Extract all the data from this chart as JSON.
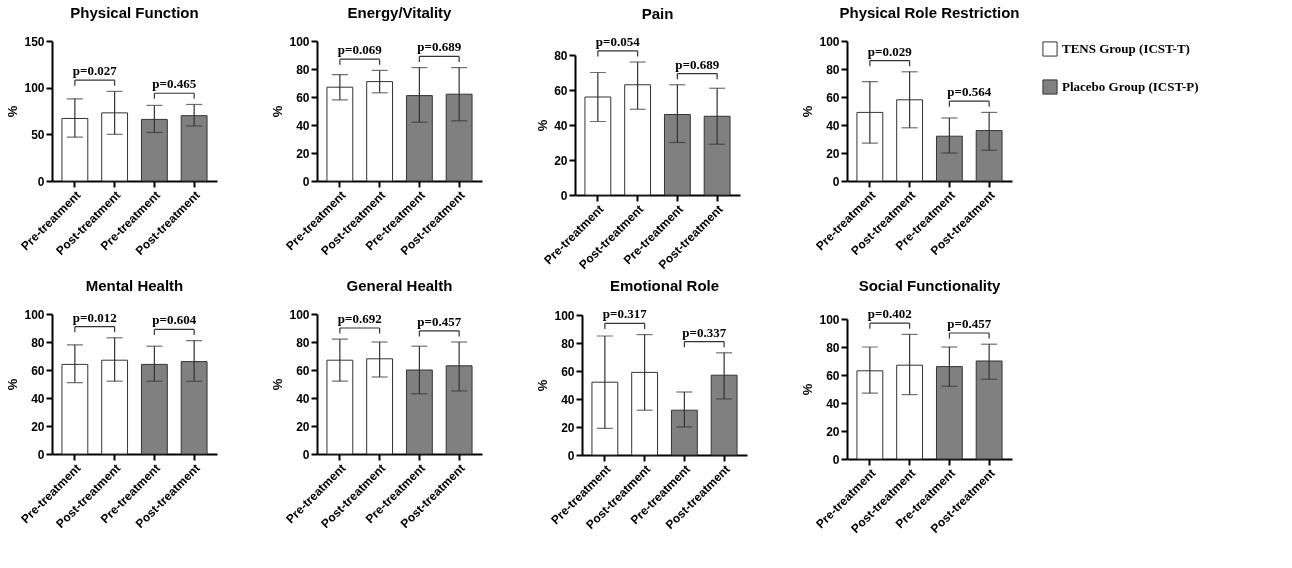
{
  "chart_data": [
    {
      "type": "bar",
      "title": "Physical Function",
      "ylabel": "%",
      "categories": [
        "Pre-treatment",
        "Post-treatment",
        "Pre-treatment",
        "Post-treatment"
      ],
      "ylim": [
        0,
        150
      ],
      "yticks": [
        0,
        50,
        100,
        150
      ],
      "grid": false,
      "annotations": [
        "p=0.027",
        "p=0.465"
      ],
      "series": [
        {
          "color": "#ffffff",
          "values": [
            67,
            73,
            null,
            null
          ],
          "errors": [
            [
              47,
              88
            ],
            [
              50,
              96
            ],
            null,
            null
          ]
        },
        {
          "color": "#808080",
          "values": [
            null,
            null,
            66,
            70
          ],
          "errors": [
            null,
            null,
            [
              52,
              81
            ],
            [
              59,
              82
            ]
          ]
        }
      ]
    },
    {
      "type": "bar",
      "title": "Energy/Vitality",
      "ylabel": "%",
      "categories": [
        "Pre-treatment",
        "Post-treatment",
        "Pre-treatment",
        "Post-treatment"
      ],
      "ylim": [
        0,
        100
      ],
      "yticks": [
        0,
        20,
        40,
        60,
        80,
        100
      ],
      "grid": false,
      "annotations": [
        "p=0.069",
        "p=0.689"
      ],
      "series": [
        {
          "color": "#ffffff",
          "values": [
            67,
            71,
            null,
            null
          ],
          "errors": [
            [
              58,
              76
            ],
            [
              63,
              79
            ],
            null,
            null
          ]
        },
        {
          "color": "#808080",
          "values": [
            null,
            null,
            61,
            62
          ],
          "errors": [
            null,
            null,
            [
              42,
              81
            ],
            [
              43,
              81
            ]
          ]
        }
      ]
    },
    {
      "type": "bar",
      "title": "Pain",
      "ylabel": "%",
      "categories": [
        "Pre-treatment",
        "Post-treatment",
        "Pre-treatment",
        "Post-treatment"
      ],
      "ylim": [
        0,
        80
      ],
      "yticks": [
        0,
        20,
        40,
        60,
        80
      ],
      "grid": false,
      "annotations": [
        "p=0.054",
        "p=0.689"
      ],
      "series": [
        {
          "color": "#ffffff",
          "values": [
            56,
            63,
            null,
            null
          ],
          "errors": [
            [
              42,
              70
            ],
            [
              49,
              76
            ],
            null,
            null
          ]
        },
        {
          "color": "#808080",
          "values": [
            null,
            null,
            46,
            45
          ],
          "errors": [
            null,
            null,
            [
              30,
              63
            ],
            [
              29,
              61
            ]
          ]
        }
      ]
    },
    {
      "type": "bar",
      "title": "Physical Role Restriction",
      "ylabel": "%",
      "categories": [
        "Pre-treatment",
        "Post-treatment",
        "Pre-treatment",
        "Post-treatment"
      ],
      "ylim": [
        0,
        100
      ],
      "yticks": [
        0,
        20,
        40,
        60,
        80,
        100
      ],
      "grid": false,
      "legend": "right",
      "annotations": [
        "p=0.029",
        "p=0.564"
      ],
      "series": [
        {
          "name": "TENS Group (ICST-T)",
          "color": "#ffffff",
          "values": [
            49,
            58,
            null,
            null
          ],
          "errors": [
            [
              27,
              71
            ],
            [
              38,
              78
            ],
            null,
            null
          ]
        },
        {
          "name": "Placebo Group (ICST-P)",
          "color": "#808080",
          "values": [
            null,
            null,
            32,
            36
          ],
          "errors": [
            null,
            null,
            [
              20,
              45
            ],
            [
              22,
              49
            ]
          ]
        }
      ]
    },
    {
      "type": "bar",
      "title": "Mental Health",
      "ylabel": "%",
      "categories": [
        "Pre-treatment",
        "Post-treatment",
        "Pre-treatment",
        "Post-treatment"
      ],
      "ylim": [
        0,
        100
      ],
      "yticks": [
        0,
        20,
        40,
        60,
        80,
        100
      ],
      "grid": false,
      "annotations": [
        "p=0.012",
        "p=0.604"
      ],
      "series": [
        {
          "color": "#ffffff",
          "values": [
            64,
            67,
            null,
            null
          ],
          "errors": [
            [
              51,
              78
            ],
            [
              52,
              83
            ],
            null,
            null
          ]
        },
        {
          "color": "#808080",
          "values": [
            null,
            null,
            64,
            66
          ],
          "errors": [
            null,
            null,
            [
              52,
              77
            ],
            [
              52,
              81
            ]
          ]
        }
      ]
    },
    {
      "type": "bar",
      "title": "General Health",
      "ylabel": "%",
      "categories": [
        "Pre-treatment",
        "Post-treatment",
        "Pre-treatment",
        "Post-treatment"
      ],
      "ylim": [
        0,
        100
      ],
      "yticks": [
        0,
        20,
        40,
        60,
        80,
        100
      ],
      "grid": false,
      "annotations": [
        "p=0.692",
        "p=0.457"
      ],
      "series": [
        {
          "color": "#ffffff",
          "values": [
            67,
            68,
            null,
            null
          ],
          "errors": [
            [
              52,
              82
            ],
            [
              55,
              80
            ],
            null,
            null
          ]
        },
        {
          "color": "#808080",
          "values": [
            null,
            null,
            60,
            63
          ],
          "errors": [
            null,
            null,
            [
              43,
              77
            ],
            [
              45,
              80
            ]
          ]
        }
      ]
    },
    {
      "type": "bar",
      "title": "Emotional Role",
      "ylabel": "%",
      "categories": [
        "Pre-treatment",
        "Post-treatment",
        "Pre-treatment",
        "Post-treatment"
      ],
      "ylim": [
        0,
        100
      ],
      "yticks": [
        0,
        20,
        40,
        60,
        80,
        100
      ],
      "grid": false,
      "annotations": [
        "p=0.317",
        "p=0.337"
      ],
      "series": [
        {
          "color": "#ffffff",
          "values": [
            52,
            59,
            null,
            null
          ],
          "errors": [
            [
              19,
              85
            ],
            [
              32,
              86
            ],
            null,
            null
          ]
        },
        {
          "color": "#808080",
          "values": [
            null,
            null,
            32,
            57
          ],
          "errors": [
            null,
            null,
            [
              20,
              45
            ],
            [
              40,
              73
            ]
          ]
        }
      ]
    },
    {
      "type": "bar",
      "title": "Social Functionality",
      "ylabel": "%",
      "categories": [
        "Pre-treatment",
        "Post-treatment",
        "Pre-treatment",
        "Post-treatment"
      ],
      "ylim": [
        0,
        100
      ],
      "yticks": [
        0,
        20,
        40,
        60,
        80,
        100
      ],
      "grid": false,
      "annotations": [
        "p=0.402",
        "p=0.457"
      ],
      "series": [
        {
          "color": "#ffffff",
          "values": [
            63,
            67,
            null,
            null
          ],
          "errors": [
            [
              47,
              80
            ],
            [
              46,
              89
            ],
            null,
            null
          ]
        },
        {
          "color": "#808080",
          "values": [
            null,
            null,
            66,
            70
          ],
          "errors": [
            null,
            null,
            [
              52,
              80
            ],
            [
              57,
              82
            ]
          ]
        }
      ]
    }
  ]
}
